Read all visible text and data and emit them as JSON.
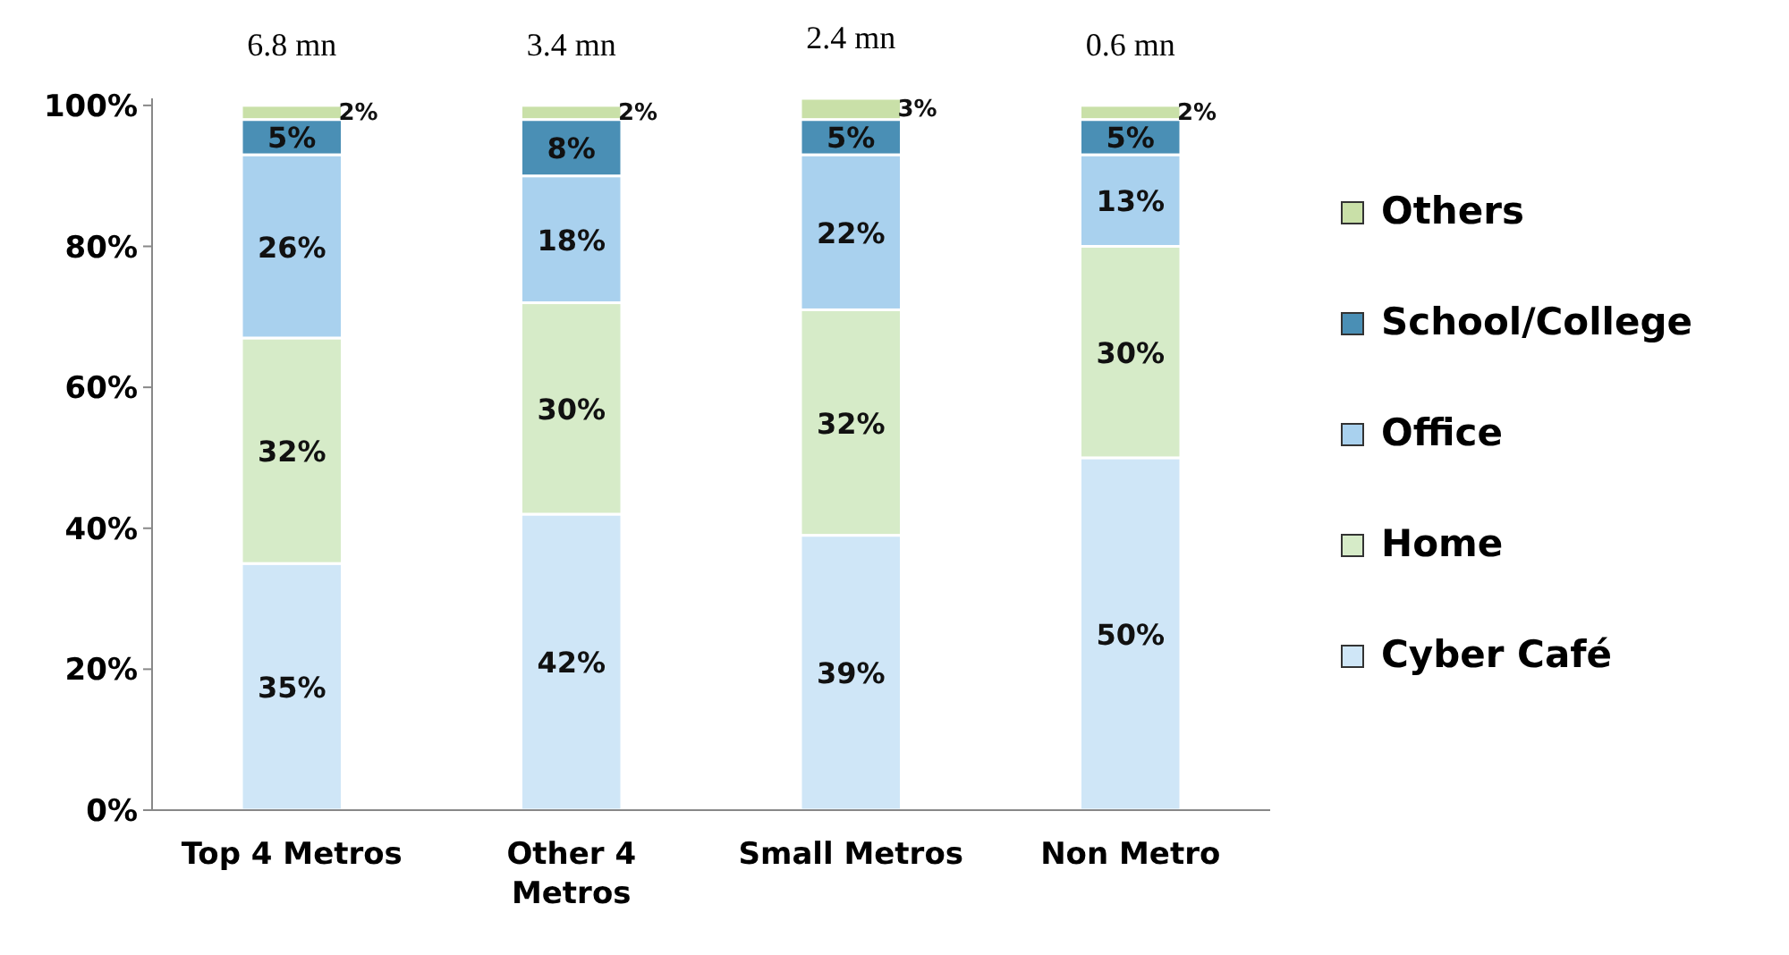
{
  "chart_data": {
    "type": "bar",
    "stacked": true,
    "categories": [
      "Top 4 Metros",
      "Other 4 Metros",
      "Small Metros",
      "Non Metro"
    ],
    "series": [
      {
        "name": "Cyber Café",
        "color": "#cfe6f7",
        "values": [
          35,
          42,
          39,
          50
        ],
        "value_labels": [
          "35%",
          "42%",
          "39%",
          "50%"
        ]
      },
      {
        "name": "Home",
        "color": "#d6ebc8",
        "values": [
          32,
          30,
          32,
          30
        ],
        "value_labels": [
          "32%",
          "30%",
          "32%",
          "30%"
        ]
      },
      {
        "name": "Office",
        "color": "#a9d1ee",
        "values": [
          26,
          18,
          22,
          13
        ],
        "value_labels": [
          "26%",
          "18%",
          "22%",
          "13%"
        ]
      },
      {
        "name": "School/College",
        "color": "#4a8fb5",
        "values": [
          5,
          8,
          5,
          5
        ],
        "value_labels": [
          "5%",
          "8%",
          "5%",
          "5%"
        ]
      },
      {
        "name": "Others",
        "color": "#c9e0a8",
        "values": [
          2,
          2,
          3,
          2
        ],
        "value_labels": [
          "2%",
          "2%",
          "3%",
          "2%"
        ]
      }
    ],
    "ylim": [
      0,
      101
    ],
    "yticks": [
      {
        "value": 0,
        "label": "0%"
      },
      {
        "value": 20,
        "label": "20%"
      },
      {
        "value": 40,
        "label": "40%"
      },
      {
        "value": 60,
        "label": "60%"
      },
      {
        "value": 80,
        "label": "80%"
      },
      {
        "value": 100,
        "label": "100%"
      }
    ],
    "annotations": [
      {
        "text": "6.8 mn",
        "x": "Top 4 Metros",
        "y": 100
      },
      {
        "text": "3.4 mn",
        "x": "Other 4 Metros",
        "y": 100
      },
      {
        "text": "2.4 mn",
        "x": "Small Metros",
        "y": 101
      },
      {
        "text": "0.6 mn",
        "x": "Non Metro",
        "y": 100
      }
    ],
    "legend": "right",
    "grid": false
  }
}
